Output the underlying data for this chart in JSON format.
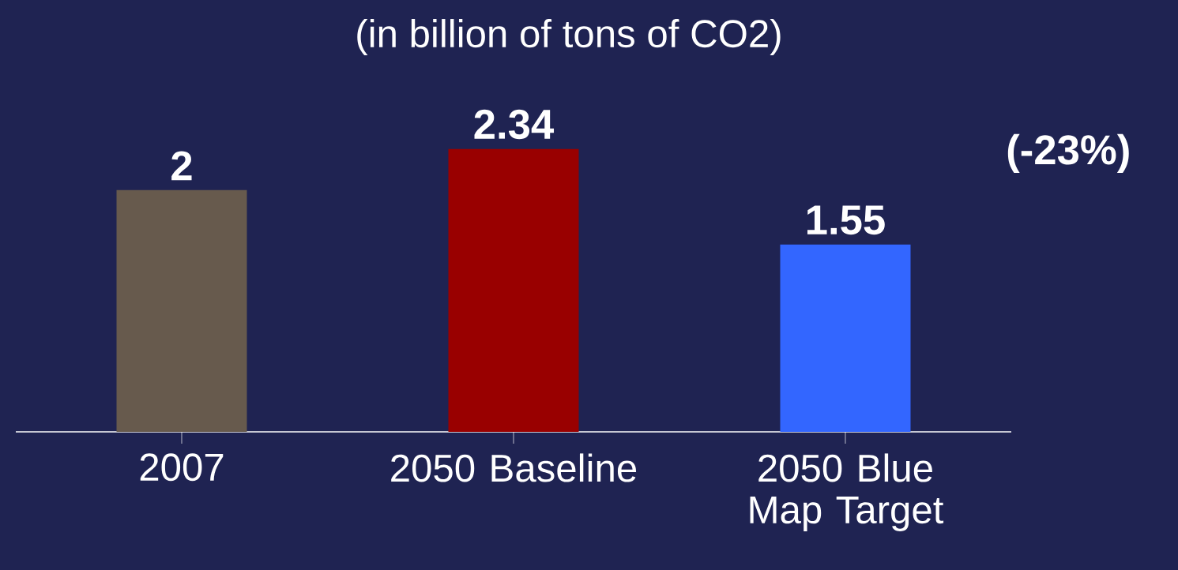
{
  "chart_data": {
    "type": "bar",
    "title": "(in billion of tons of CO2)",
    "categories": [
      "2007",
      "2050 Baseline",
      "2050 Blue Map Target"
    ],
    "values": [
      2,
      2.34,
      1.55
    ],
    "colors": [
      "#675a4d",
      "#990000",
      "#3366ff"
    ],
    "data_labels": true,
    "annotations": [
      "(-23%)"
    ]
  }
}
